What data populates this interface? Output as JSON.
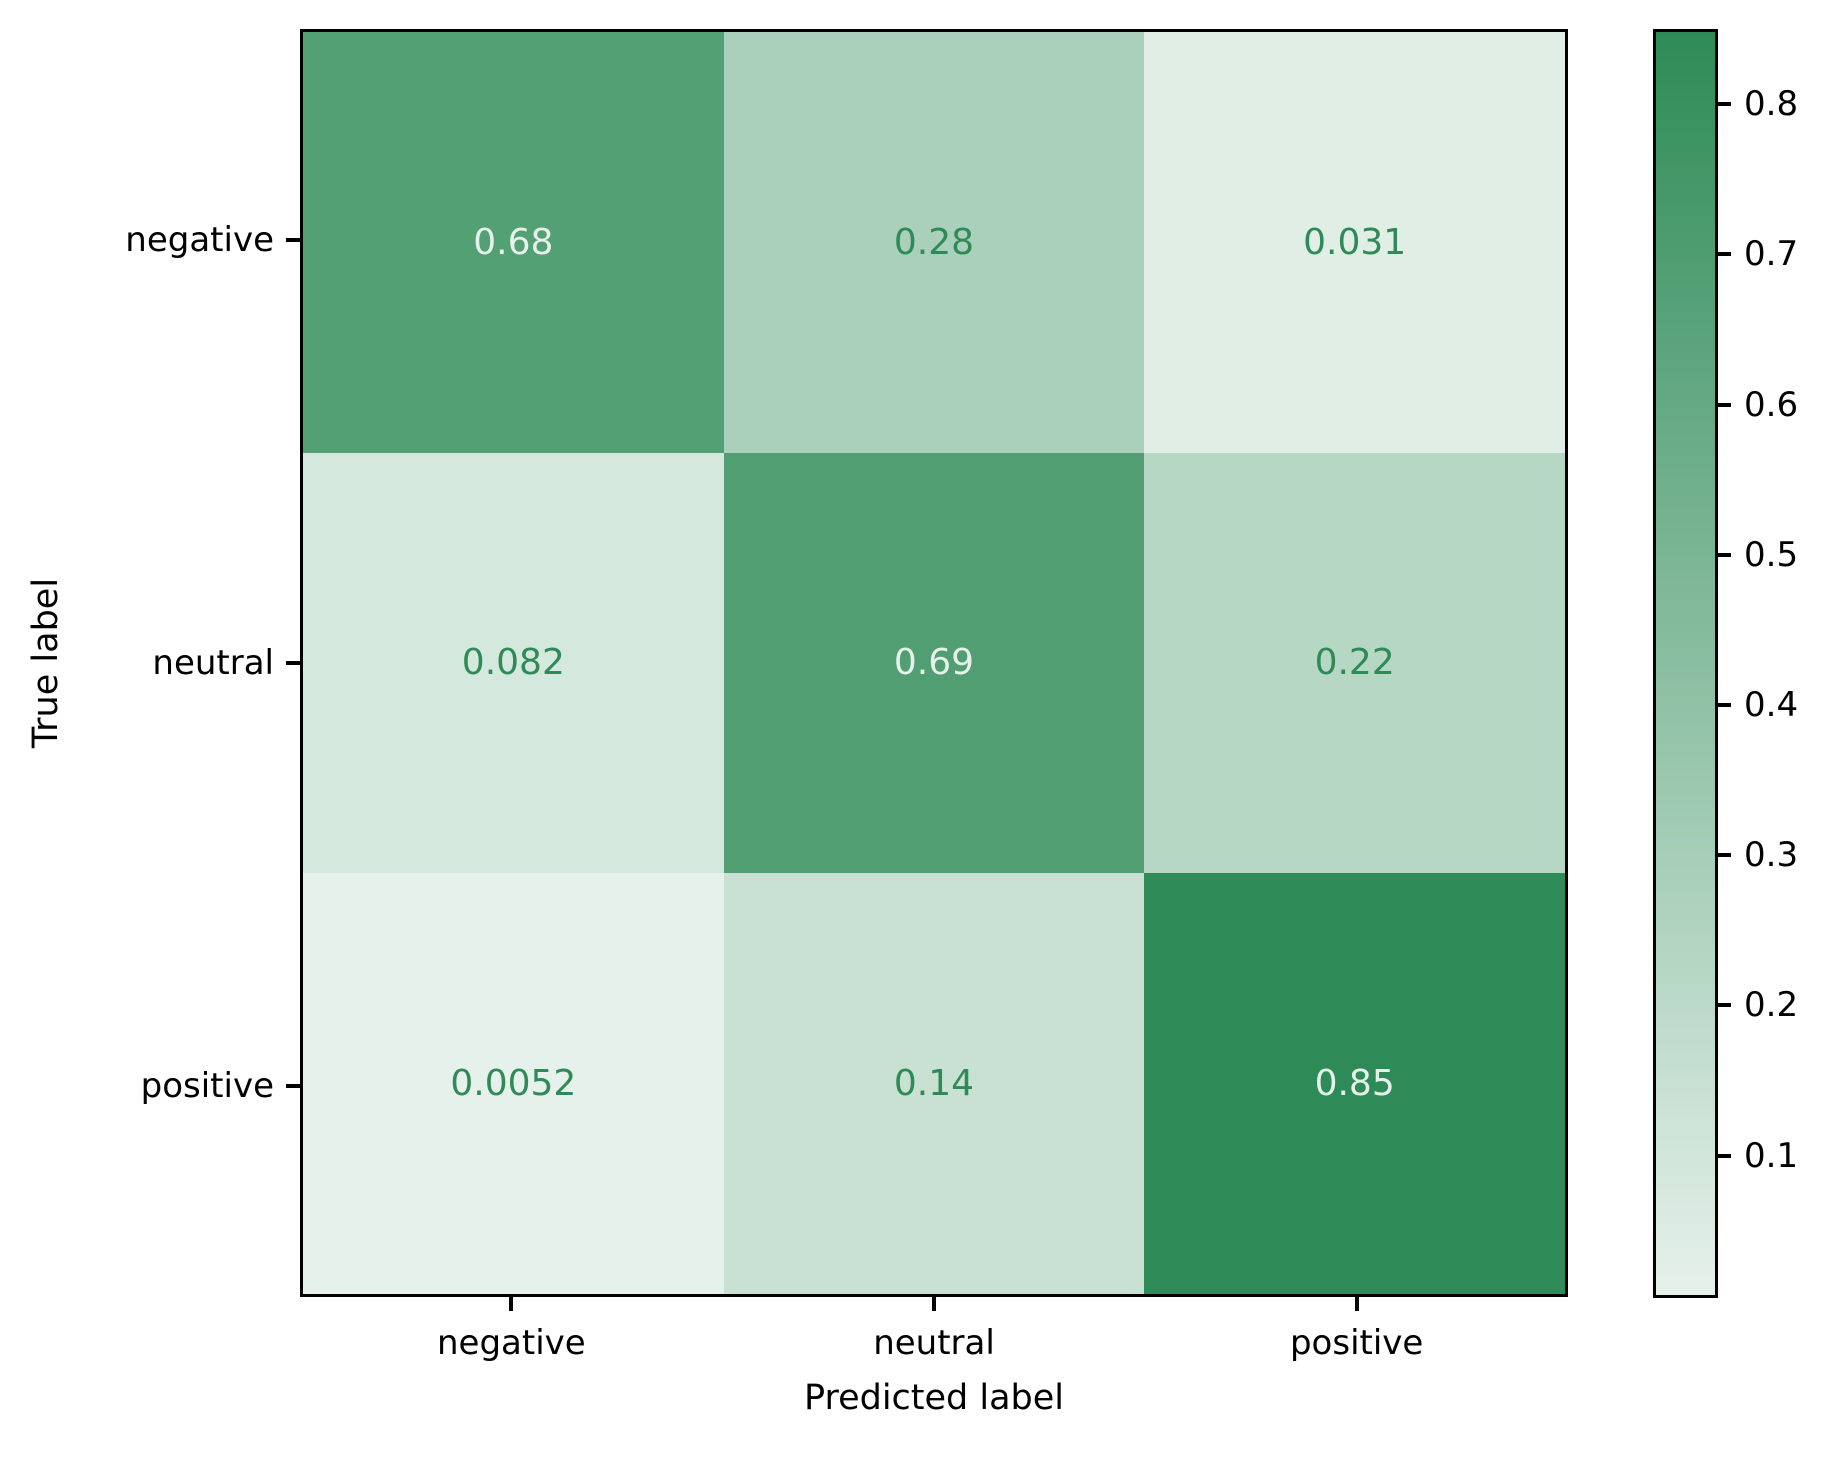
{
  "figure": {
    "background_color": "#ffffff",
    "spine_color": "#000000"
  },
  "chart_data": {
    "type": "heatmap",
    "title": "",
    "xlabel": "Predicted label",
    "ylabel": "True label",
    "x_categories": [
      "negative",
      "neutral",
      "positive"
    ],
    "y_categories": [
      "negative",
      "neutral",
      "positive"
    ],
    "matrix": [
      [
        0.68,
        0.28,
        0.031
      ],
      [
        0.082,
        0.69,
        0.22
      ],
      [
        0.0052,
        0.14,
        0.85
      ]
    ],
    "cell_labels": [
      [
        "0.68",
        "0.28",
        "0.031"
      ],
      [
        "0.082",
        "0.69",
        "0.22"
      ],
      [
        "0.0052",
        "0.14",
        "0.85"
      ]
    ],
    "colormap": {
      "min_color": "#e6f1eb",
      "max_color": "#2e8b57",
      "vmin": 0.0052,
      "vmax": 0.85
    },
    "cell_text_colors": {
      "on_dark": "#e6f1eb",
      "on_light": "#2e8b57"
    },
    "grid": false,
    "legend_position": "none",
    "colorbar": {
      "position": "right",
      "tick_values": [
        0.8,
        0.7,
        0.6,
        0.5,
        0.4,
        0.3,
        0.2,
        0.1
      ],
      "tick_labels": [
        "0.8",
        "0.7",
        "0.6",
        "0.5",
        "0.4",
        "0.3",
        "0.2",
        "0.1"
      ]
    }
  }
}
